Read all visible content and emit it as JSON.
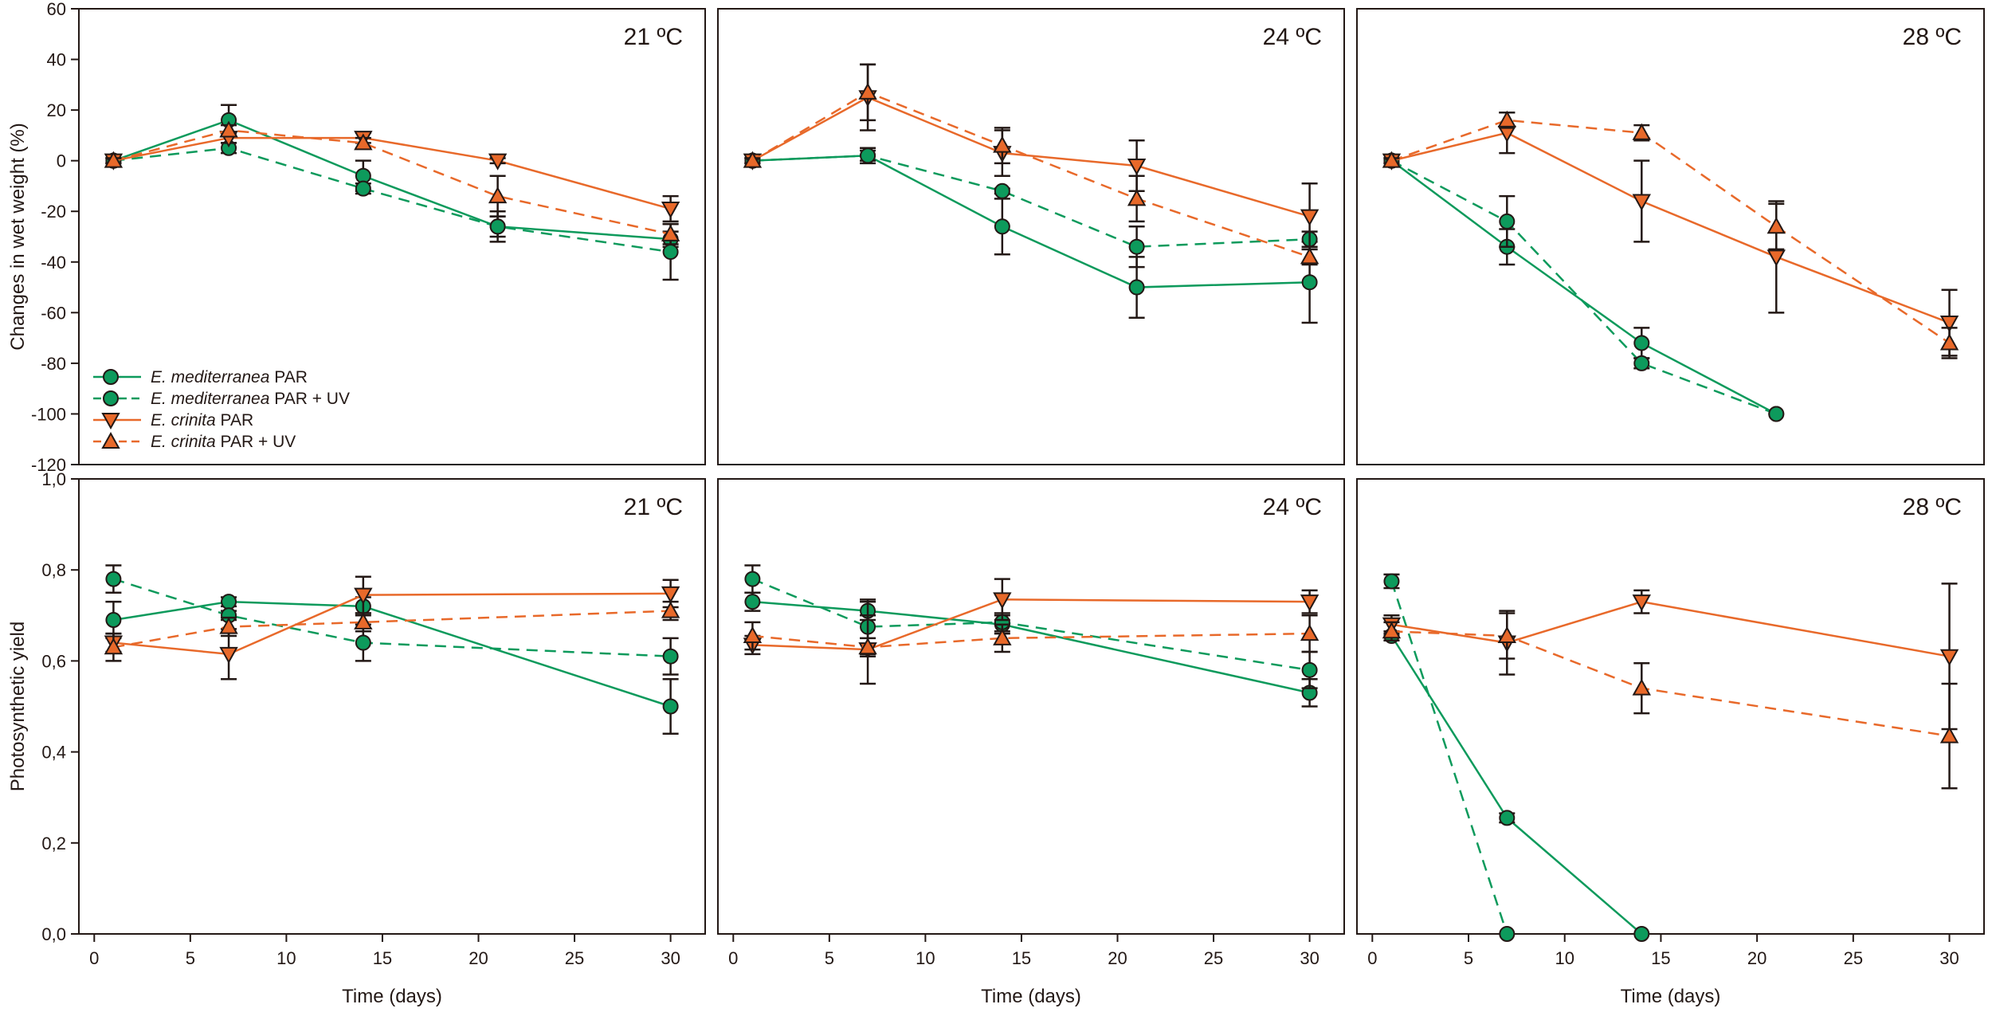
{
  "chart_data": {
    "type": "line",
    "xlabel": "Time (days)",
    "x": [
      1,
      7,
      14,
      21,
      30
    ],
    "xticks": [
      "0",
      "5",
      "10",
      "15",
      "20",
      "25",
      "30"
    ],
    "colors": {
      "green": "#0d9a5c",
      "orange": "#e8692a",
      "axis": "#231815"
    },
    "legend": {
      "placement": "bottom-left of top-left panel",
      "entries": [
        {
          "species": "E. mediterranea",
          "treatment": " PAR"
        },
        {
          "species": "E. mediterranea",
          "treatment": " PAR + UV"
        },
        {
          "species": "E. crinita",
          "treatment": " PAR"
        },
        {
          "species": "E. crinita",
          "treatment": " PAR + UV"
        }
      ]
    },
    "rows": [
      {
        "ylabel": "Changes in wet weight (%)",
        "ylim": [
          -120,
          60
        ],
        "yticks": [
          "60",
          "40",
          "20",
          "0",
          "-20",
          "-40",
          "-60",
          "-80",
          "-100",
          "-120"
        ],
        "ytick_values": [
          60,
          40,
          20,
          0,
          -20,
          -40,
          -60,
          -80,
          -100,
          -120
        ],
        "panels": [
          {
            "title": "21 ºC",
            "series": [
              {
                "name": "E. mediterranea PAR",
                "values": [
                  0,
                  16,
                  -6,
                  -26,
                  -31
                ],
                "err": [
                  1,
                  6,
                  6,
                  4,
                  3
                ]
              },
              {
                "name": "E. mediterranea PAR + UV",
                "values": [
                  0,
                  5,
                  -11,
                  -26,
                  -36
                ],
                "err": [
                  1,
                  2,
                  2,
                  6,
                  11
                ]
              },
              {
                "name": "E. crinita PAR",
                "values": [
                  0,
                  9,
                  9,
                  0,
                  -19
                ],
                "err": [
                  1,
                  2,
                  2,
                  1,
                  5
                ]
              },
              {
                "name": "E. crinita PAR + UV",
                "values": [
                  0,
                  12,
                  7,
                  -14,
                  -29
                ],
                "err": [
                  1,
                  2,
                  2,
                  8,
                  4
                ]
              }
            ]
          },
          {
            "title": "24 ºC",
            "series": [
              {
                "name": "E. mediterranea PAR",
                "values": [
                  0,
                  2,
                  -26,
                  -50,
                  -48
                ],
                "err": [
                  1,
                  3,
                  11,
                  12,
                  16
                ]
              },
              {
                "name": "E. mediterranea PAR + UV",
                "values": [
                  0,
                  2,
                  -12,
                  -34,
                  -31
                ],
                "err": [
                  1,
                  2,
                  1,
                  8,
                  3
                ]
              },
              {
                "name": "E. crinita PAR",
                "values": [
                  0,
                  25,
                  3,
                  -2,
                  -22
                ],
                "err": [
                  1,
                  13,
                  9,
                  10,
                  13
                ]
              },
              {
                "name": "E. crinita PAR + UV",
                "values": [
                  0,
                  27,
                  6,
                  -15,
                  -38
                ],
                "err": [
                  1,
                  11,
                  7,
                  9,
                  3
                ]
              }
            ]
          },
          {
            "title": "28 ºC",
            "series": [
              {
                "name": "E. mediterranea PAR",
                "values": [
                  0,
                  -34,
                  -72,
                  -100,
                  null
                ],
                "err": [
                  1,
                  7,
                  6,
                  0,
                  0
                ]
              },
              {
                "name": "E. mediterranea PAR + UV",
                "values": [
                  0,
                  -24,
                  -80,
                  -100,
                  null
                ],
                "err": [
                  1,
                  10,
                  2,
                  0,
                  0
                ]
              },
              {
                "name": "E. crinita PAR",
                "values": [
                  0,
                  11,
                  -16,
                  -38,
                  -64
                ],
                "err": [
                  1,
                  8,
                  16,
                  22,
                  13
                ]
              },
              {
                "name": "E. crinita PAR + UV",
                "values": [
                  0,
                  16,
                  11,
                  -26,
                  -72
                ],
                "err": [
                  1,
                  3,
                  3,
                  9,
                  6
                ]
              }
            ]
          }
        ]
      },
      {
        "ylabel": "Photosynthetic yield",
        "ylim": [
          0,
          1.0
        ],
        "yticks": [
          "1,0",
          "0,8",
          "0,6",
          "0,4",
          "0,2",
          "0,0"
        ],
        "ytick_values": [
          1.0,
          0.8,
          0.6,
          0.4,
          0.2,
          0.0
        ],
        "panels": [
          {
            "title": "21 ºC",
            "series": [
              {
                "name": "E. mediterranea PAR",
                "values": [
                  0.69,
                  0.73,
                  0.72,
                  null,
                  0.5
                ],
                "err": [
                  0.04,
                  0.01,
                  0.02,
                  0,
                  0.06
                ]
              },
              {
                "name": "E. mediterranea PAR + UV",
                "values": [
                  0.78,
                  0.7,
                  0.64,
                  null,
                  0.61
                ],
                "err": [
                  0.03,
                  0.01,
                  0.04,
                  0,
                  0.04
                ]
              },
              {
                "name": "E. crinita PAR",
                "values": [
                  0.64,
                  0.615,
                  0.745,
                  null,
                  0.748
                ],
                "err": [
                  0.02,
                  0.055,
                  0.04,
                  0,
                  0.03
                ]
              },
              {
                "name": "E. crinita PAR + UV",
                "values": [
                  0.63,
                  0.675,
                  0.685,
                  null,
                  0.71
                ],
                "err": [
                  0.03,
                  0.02,
                  0.02,
                  0,
                  0.02
                ]
              }
            ]
          },
          {
            "title": "24 ºC",
            "series": [
              {
                "name": "E. mediterranea PAR",
                "values": [
                  0.73,
                  0.71,
                  0.68,
                  null,
                  0.53
                ],
                "err": [
                  0.02,
                  0.02,
                  0.02,
                  0,
                  0.03
                ]
              },
              {
                "name": "E. mediterranea PAR + UV",
                "values": [
                  0.78,
                  0.675,
                  0.685,
                  null,
                  0.58
                ],
                "err": [
                  0.03,
                  0.06,
                  0.02,
                  0,
                  0.04
                ]
              },
              {
                "name": "E. crinita PAR",
                "values": [
                  0.635,
                  0.625,
                  0.735,
                  null,
                  0.73
                ],
                "err": [
                  0.02,
                  0.075,
                  0.045,
                  0,
                  0.025
                ]
              },
              {
                "name": "E. crinita PAR + UV",
                "values": [
                  0.655,
                  0.63,
                  0.65,
                  null,
                  0.66
                ],
                "err": [
                  0.03,
                  0.02,
                  0.03,
                  0,
                  0.04
                ]
              }
            ]
          },
          {
            "title": "28 ºC",
            "series": [
              {
                "name": "E. mediterranea PAR",
                "values": [
                  0.655,
                  0.255,
                  0.0,
                  null,
                  null
                ],
                "err": [
                  0.01,
                  0.01,
                  0.0,
                  0,
                  0
                ]
              },
              {
                "name": "E. mediterranea PAR + UV",
                "values": [
                  0.775,
                  0.0,
                  null,
                  null,
                  null
                ],
                "err": [
                  0.015,
                  0.0,
                  0,
                  0,
                  0
                ]
              },
              {
                "name": "E. crinita PAR",
                "values": [
                  0.68,
                  0.64,
                  0.73,
                  null,
                  0.61
                ],
                "err": [
                  0.02,
                  0.07,
                  0.025,
                  0,
                  0.16
                ]
              },
              {
                "name": "E. crinita PAR + UV",
                "values": [
                  0.665,
                  0.655,
                  0.54,
                  null,
                  0.435
                ],
                "err": [
                  0.02,
                  0.05,
                  0.055,
                  0,
                  0.115
                ]
              }
            ]
          }
        ]
      }
    ]
  }
}
